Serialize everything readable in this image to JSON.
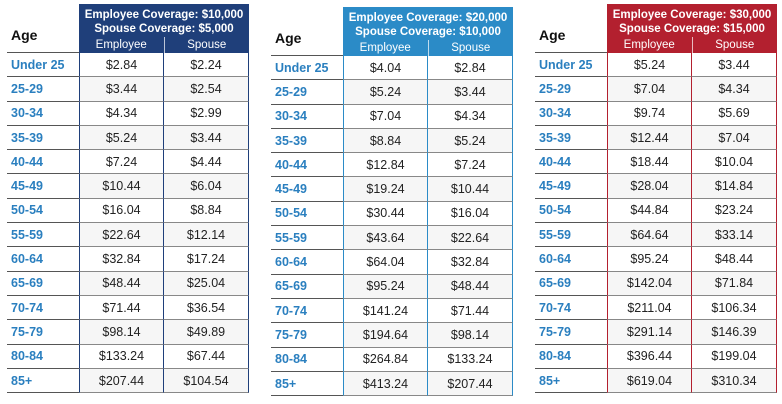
{
  "age_header": "Age",
  "col_employee": "Employee",
  "col_spouse": "Spouse",
  "ages": [
    "Under 25",
    "25-29",
    "30-34",
    "35-39",
    "40-44",
    "45-49",
    "50-54",
    "55-59",
    "60-64",
    "65-69",
    "70-74",
    "75-79",
    "80-84",
    "85+"
  ],
  "tables": [
    {
      "line1": "Employee Coverage: $10,000",
      "line2": "Spouse Coverage: $5,000",
      "header_color": "#1f3f7a",
      "age_color": "#2a7fbf",
      "employee": [
        "$2.84",
        "$3.44",
        "$4.34",
        "$5.24",
        "$7.24",
        "$10.44",
        "$16.04",
        "$22.64",
        "$32.84",
        "$48.44",
        "$71.44",
        "$98.14",
        "$133.24",
        "$207.44"
      ],
      "spouse": [
        "$2.24",
        "$2.54",
        "$2.99",
        "$3.44",
        "$4.44",
        "$6.04",
        "$8.84",
        "$12.14",
        "$17.24",
        "$25.04",
        "$36.54",
        "$49.89",
        "$67.44",
        "$104.54"
      ]
    },
    {
      "line1": "Employee Coverage: $20,000",
      "line2": "Spouse Coverage: $10,000",
      "header_color": "#2b8bc7",
      "age_color": "#2a7fbf",
      "employee": [
        "$4.04",
        "$5.24",
        "$7.04",
        "$8.84",
        "$12.84",
        "$19.24",
        "$30.44",
        "$43.64",
        "$64.04",
        "$95.24",
        "$141.24",
        "$194.64",
        "$264.84",
        "$413.24"
      ],
      "spouse": [
        "$2.84",
        "$3.44",
        "$4.34",
        "$5.24",
        "$7.24",
        "$10.44",
        "$16.04",
        "$22.64",
        "$32.84",
        "$48.44",
        "$71.44",
        "$98.14",
        "$133.24",
        "$207.44"
      ]
    },
    {
      "line1": "Employee Coverage: $30,000",
      "line2": "Spouse Coverage: $15,000",
      "header_color": "#b3202f",
      "age_color": "#2a7fbf",
      "employee": [
        "$5.24",
        "$7.04",
        "$9.74",
        "$12.44",
        "$18.44",
        "$28.04",
        "$44.84",
        "$64.64",
        "$95.24",
        "$142.04",
        "$211.04",
        "$291.14",
        "$396.44",
        "$619.04"
      ],
      "spouse": [
        "$3.44",
        "$4.34",
        "$5.69",
        "$7.04",
        "$10.04",
        "$14.84",
        "$23.24",
        "$33.14",
        "$48.44",
        "$71.84",
        "$106.34",
        "$146.39",
        "$199.04",
        "$310.34"
      ]
    }
  ]
}
